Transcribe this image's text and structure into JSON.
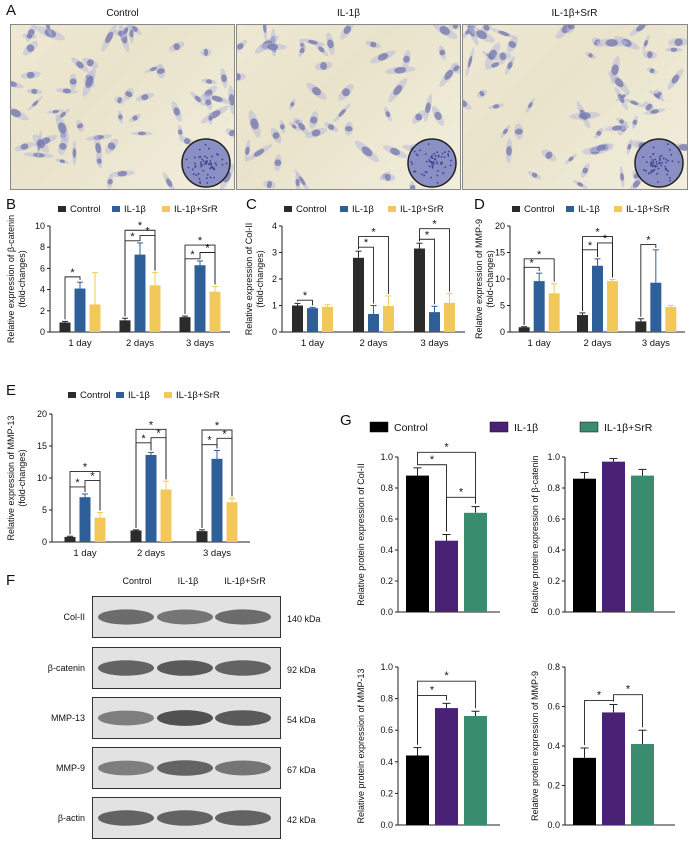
{
  "panel_letters": {
    "A": "A",
    "B": "B",
    "C": "C",
    "D": "D",
    "E": "E",
    "F": "F",
    "G": "G"
  },
  "panel_a": {
    "labels": [
      "Control",
      "IL-1β",
      "IL-1β+SrR"
    ]
  },
  "legend_labels": [
    "Control",
    "IL-1β",
    "IL-1β+SrR"
  ],
  "colors": {
    "control": "#2b2b2b",
    "il1b": "#2f5f99",
    "srr": "#f2c85a",
    "g_control": "#000000",
    "g_il1b": "#4a2275",
    "g_srr": "#3a8c6e"
  },
  "blot": {
    "columns": [
      "Control",
      "IL-1β",
      "IL-1β+SrR"
    ],
    "rows": [
      {
        "label": "Col-II",
        "kda": "140 kDa"
      },
      {
        "label": "β-catenin",
        "kda": "92 kDa"
      },
      {
        "label": "MMP-13",
        "kda": "54 kDa"
      },
      {
        "label": "MMP-9",
        "kda": "67 kDa"
      },
      {
        "label": "β-actin",
        "kda": "42 kDa"
      }
    ]
  },
  "chart_data": [
    {
      "panel": "B",
      "type": "bar",
      "categories": [
        "1 day",
        "2 days",
        "3 days"
      ],
      "ylabel": "Relative expression of β-catenin\n(fold-changes)",
      "ylim": [
        0,
        10
      ],
      "yticks": [
        0,
        2,
        4,
        6,
        8,
        10
      ],
      "series": [
        {
          "name": "Control",
          "values": [
            0.9,
            1.1,
            1.4
          ],
          "err": [
            0.1,
            0.2,
            0.1
          ]
        },
        {
          "name": "IL-1β",
          "values": [
            4.1,
            7.3,
            6.3
          ],
          "err": [
            0.6,
            1.1,
            0.4
          ]
        },
        {
          "name": "IL-1β+SrR",
          "values": [
            2.6,
            4.4,
            3.8
          ],
          "err": [
            3.0,
            1.2,
            0.5
          ]
        }
      ]
    },
    {
      "panel": "C",
      "type": "bar",
      "categories": [
        "1 day",
        "2 days",
        "3 days"
      ],
      "ylabel": "Relative expression of Col-II\n(fold-changes)",
      "ylim": [
        0,
        4
      ],
      "yticks": [
        0,
        1,
        2,
        3,
        4
      ],
      "series": [
        {
          "name": "Control",
          "values": [
            1.0,
            2.8,
            3.15
          ],
          "err": [
            0.08,
            0.25,
            0.2
          ]
        },
        {
          "name": "IL-1β",
          "values": [
            0.9,
            0.68,
            0.75
          ],
          "err": [
            0.03,
            0.32,
            0.22
          ]
        },
        {
          "name": "IL-1β+SrR",
          "values": [
            0.95,
            0.98,
            1.1
          ],
          "err": [
            0.08,
            0.38,
            0.35
          ]
        }
      ]
    },
    {
      "panel": "D",
      "type": "bar",
      "categories": [
        "1 day",
        "2 days",
        "3 days"
      ],
      "ylabel": "Relative expression of MMP-9\n(fold-changes)",
      "ylim": [
        0,
        20
      ],
      "yticks": [
        0,
        5,
        10,
        15,
        20
      ],
      "series": [
        {
          "name": "Control",
          "values": [
            0.9,
            3.2,
            2.0
          ],
          "err": [
            0.1,
            0.4,
            0.5
          ]
        },
        {
          "name": "IL-1β",
          "values": [
            9.6,
            12.5,
            9.3
          ],
          "err": [
            1.5,
            1.3,
            6.2
          ]
        },
        {
          "name": "IL-1β+SrR",
          "values": [
            7.3,
            9.6,
            4.7
          ],
          "err": [
            1.8,
            0.3,
            0.3
          ]
        }
      ]
    },
    {
      "panel": "E",
      "type": "bar",
      "categories": [
        "1 day",
        "2 days",
        "3 days"
      ],
      "ylabel": "Relative expression of MMP-13\n(fold-changes)",
      "ylim": [
        0,
        20
      ],
      "yticks": [
        0,
        5,
        10,
        15,
        20
      ],
      "series": [
        {
          "name": "Control",
          "values": [
            0.8,
            1.8,
            1.7
          ],
          "err": [
            0.1,
            0.1,
            0.2
          ]
        },
        {
          "name": "IL-1β",
          "values": [
            7.0,
            13.6,
            13.0
          ],
          "err": [
            0.5,
            0.4,
            1.3
          ]
        },
        {
          "name": "IL-1β+SrR",
          "values": [
            3.8,
            8.2,
            6.2
          ],
          "err": [
            0.8,
            1.3,
            0.6
          ]
        }
      ]
    },
    {
      "panel": "G1",
      "type": "bar",
      "categories": [
        "Control",
        "IL-1β",
        "IL-1β+SrR"
      ],
      "ylabel": "Relative protein expression of Col-II",
      "ylim": [
        0,
        1.0
      ],
      "yticks": [
        0.0,
        0.2,
        0.4,
        0.6,
        0.8,
        1.0
      ],
      "values": [
        0.88,
        0.46,
        0.64
      ],
      "err": [
        0.05,
        0.04,
        0.04
      ]
    },
    {
      "panel": "G2",
      "type": "bar",
      "categories": [
        "Control",
        "IL-1β",
        "IL-1β+SrR"
      ],
      "ylabel": "Relative protein expression of β-catenin",
      "ylim": [
        0,
        1.0
      ],
      "yticks": [
        0.0,
        0.2,
        0.4,
        0.6,
        0.8,
        1.0
      ],
      "values": [
        0.86,
        0.97,
        0.88
      ],
      "err": [
        0.04,
        0.02,
        0.04
      ]
    },
    {
      "panel": "G3",
      "type": "bar",
      "categories": [
        "Control",
        "IL-1β",
        "IL-1β+SrR"
      ],
      "ylabel": "Relative protein expression of MMP-13",
      "ylim": [
        0,
        1.0
      ],
      "yticks": [
        0.0,
        0.2,
        0.4,
        0.6,
        0.8,
        1.0
      ],
      "values": [
        0.44,
        0.74,
        0.69
      ],
      "err": [
        0.05,
        0.03,
        0.03
      ]
    },
    {
      "panel": "G4",
      "type": "bar",
      "categories": [
        "Control",
        "IL-1β",
        "IL-1β+SrR"
      ],
      "ylabel": "Relative protein expression of MMP-9",
      "ylim": [
        0,
        0.8
      ],
      "yticks": [
        0.0,
        0.2,
        0.4,
        0.6,
        0.8
      ],
      "values": [
        0.34,
        0.57,
        0.41
      ],
      "err": [
        0.05,
        0.04,
        0.07
      ]
    }
  ],
  "sig_marker": "*"
}
